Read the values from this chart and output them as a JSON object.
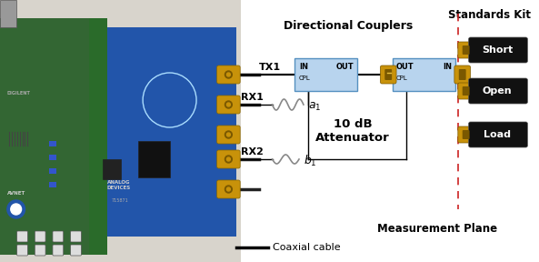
{
  "fig_width": 5.93,
  "fig_height": 2.88,
  "dpi": 100,
  "bg_color": "#ffffff",
  "title_dc": "Directional Couplers",
  "title_sk": "Standards Kit",
  "coupler_color": "#b8d4ee",
  "coupler_border": "#5590c0",
  "attenuator_label": "10 dB\nAttenuator",
  "tx1_label": "TX1",
  "rx1_label": "RX1",
  "rx2_label": "RX2",
  "dashed_line_color": "#cc2222",
  "measurement_plane_label": "Measurement Plane",
  "coax_label": "Coaxial cable",
  "short_label": "Short",
  "open_label": "Open",
  "load_label": "Load",
  "connector_color": "#c8920a",
  "connector_dark": "#7a5800",
  "standard_box_color": "#111111",
  "standard_text_color": "#ffffff",
  "line_color": "#000000",
  "wave_color": "#888888"
}
